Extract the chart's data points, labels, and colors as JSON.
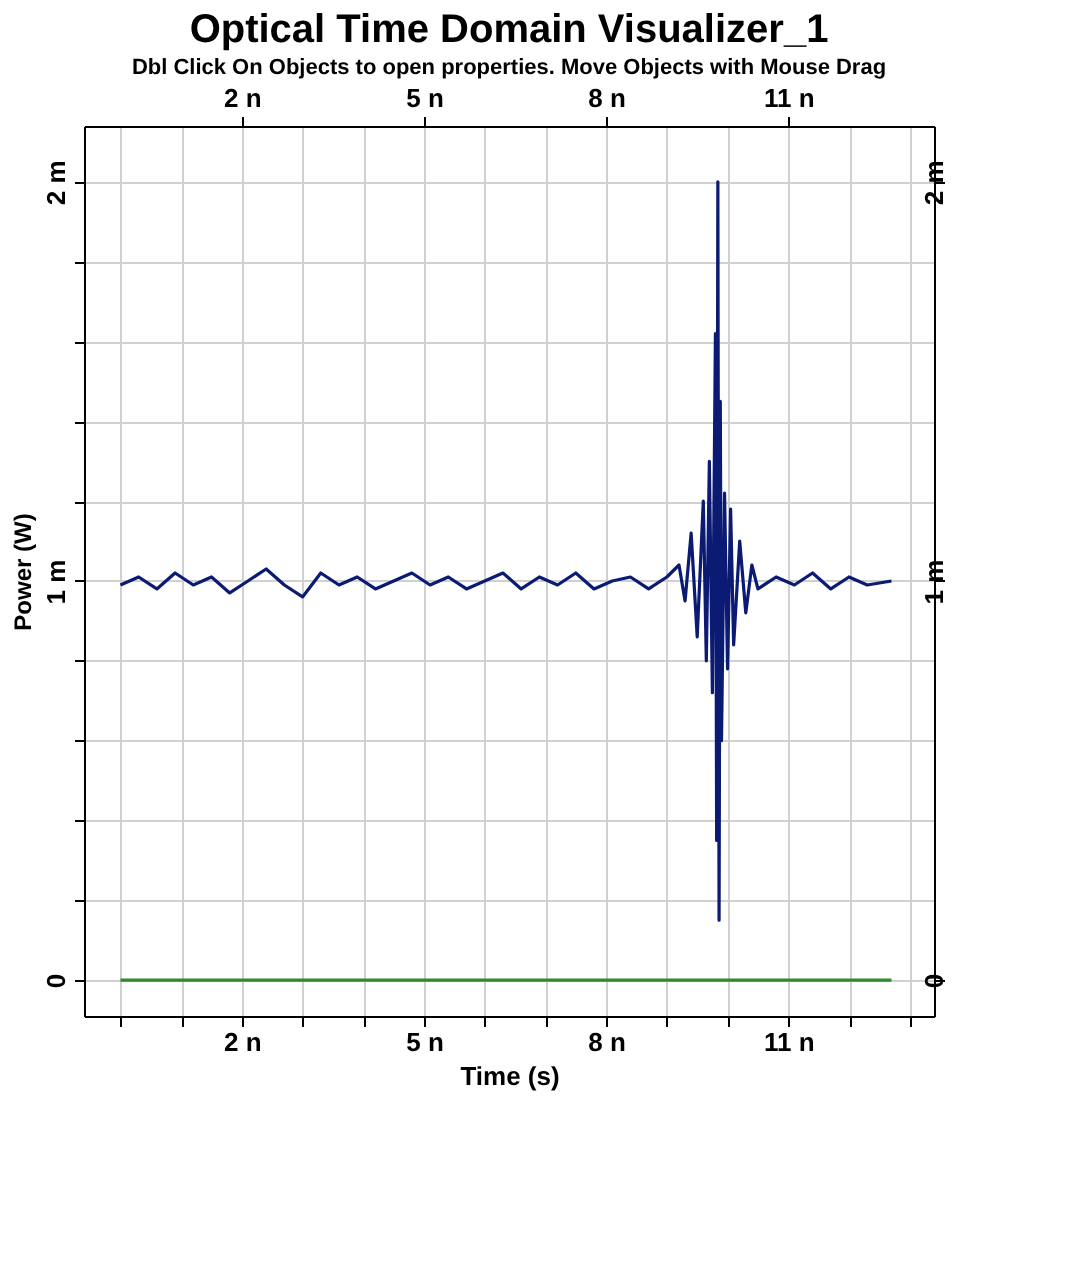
{
  "chart_data": {
    "type": "line",
    "title": "Optical Time Domain Visualizer_1",
    "subtitle": "Dbl Click On Objects to open properties.  Move Objects with Mouse Drag",
    "xlabel": "Time (s)",
    "ylabel": "Power (W)",
    "xlim": [
      -0.6,
      13.4
    ],
    "ylim": [
      -0.09,
      2.14
    ],
    "xticks": [
      {
        "value": 0,
        "label": null
      },
      {
        "value": 1,
        "label": null
      },
      {
        "value": 2,
        "label": "2 n"
      },
      {
        "value": 3,
        "label": null
      },
      {
        "value": 4,
        "label": null
      },
      {
        "value": 5,
        "label": "5 n"
      },
      {
        "value": 6,
        "label": null
      },
      {
        "value": 7,
        "label": null
      },
      {
        "value": 8,
        "label": "8 n"
      },
      {
        "value": 9,
        "label": null
      },
      {
        "value": 10,
        "label": null
      },
      {
        "value": 11,
        "label": "11 n"
      },
      {
        "value": 12,
        "label": null
      },
      {
        "value": 13,
        "label": null
      }
    ],
    "x2lim": [
      -0.6,
      13.4
    ],
    "x2ticks": [
      {
        "value": 2,
        "label": "2 n"
      },
      {
        "value": 5,
        "label": "5 n"
      },
      {
        "value": 8,
        "label": "8 n"
      },
      {
        "value": 11,
        "label": "11 n"
      }
    ],
    "yticks": [
      0,
      {
        "value": 0.2,
        "label": null
      },
      {
        "value": 0.4,
        "label": null
      },
      {
        "value": 0.6,
        "label": null
      },
      {
        "value": 0.8,
        "label": null
      },
      {
        "value": 1,
        "label": "1 m"
      },
      {
        "value": 1.2,
        "label": null
      },
      {
        "value": 1.4,
        "label": null
      },
      {
        "value": 1.6,
        "label": null
      },
      {
        "value": 1.8,
        "label": null
      },
      {
        "value": 2,
        "label": "2 m"
      }
    ],
    "y2lim": [
      -0.09,
      2.14
    ],
    "y2ticks": [
      0,
      {
        "value": 1,
        "label": "1 m"
      },
      {
        "value": 2,
        "label": "2 m"
      }
    ],
    "grid": true,
    "series": [
      {
        "color": "#0b1a72",
        "x": [
          0,
          0.3,
          0.6,
          0.9,
          1.2,
          1.5,
          1.8,
          2.1,
          2.4,
          2.7,
          3,
          3.3,
          3.6,
          3.9,
          4.2,
          4.5,
          4.8,
          5.1,
          5.4,
          5.7,
          6,
          6.3,
          6.6,
          6.9,
          7.2,
          7.5,
          7.8,
          8.1,
          8.4,
          8.7,
          9,
          9.2,
          9.3,
          9.4,
          9.5,
          9.6,
          9.65,
          9.7,
          9.75,
          9.8,
          9.82,
          9.84,
          9.86,
          9.88,
          9.9,
          9.95,
          10,
          10.05,
          10.1,
          10.2,
          10.3,
          10.4,
          10.5,
          10.8,
          11.1,
          11.4,
          11.7,
          12,
          12.3,
          12.7
        ],
        "values": [
          0.99,
          1.01,
          0.98,
          1.02,
          0.99,
          1.01,
          0.97,
          1,
          1.03,
          0.99,
          0.96,
          1.02,
          0.99,
          1.01,
          0.98,
          1,
          1.02,
          0.99,
          1.01,
          0.98,
          1,
          1.02,
          0.98,
          1.01,
          0.99,
          1.02,
          0.98,
          1,
          1.01,
          0.98,
          1.01,
          1.04,
          0.95,
          1.12,
          0.86,
          1.2,
          0.8,
          1.3,
          0.72,
          1.62,
          0.35,
          2,
          0.15,
          1.45,
          0.6,
          1.22,
          0.78,
          1.18,
          0.84,
          1.1,
          0.92,
          1.04,
          0.98,
          1.01,
          0.99,
          1.02,
          0.98,
          1.01,
          0.99,
          1
        ]
      },
      {
        "color": "#2e8b2e",
        "x": [
          0,
          12.7
        ],
        "values": [
          0,
          0
        ]
      }
    ]
  }
}
